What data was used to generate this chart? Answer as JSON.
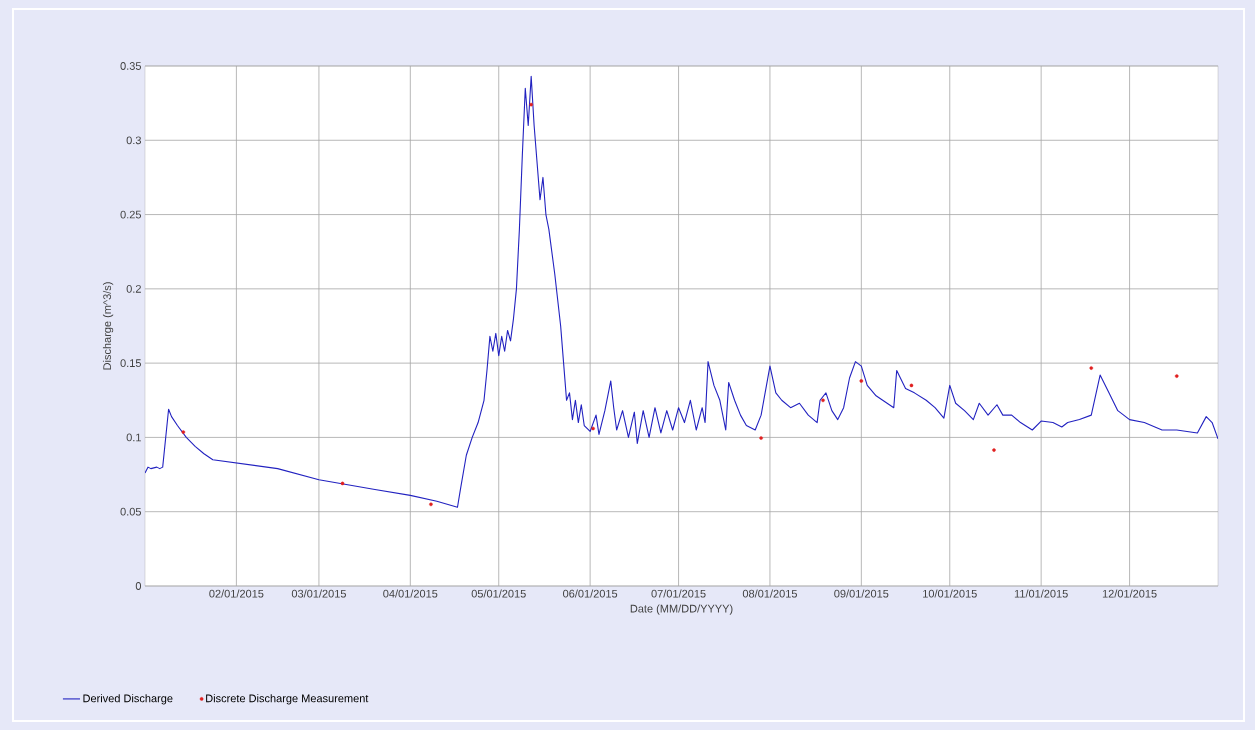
{
  "chart_data": {
    "type": "line",
    "xlabel": "Date (MM/DD/YYYY)",
    "ylabel": "Discharge (m^3/s)",
    "xlim": [
      "2015-01-01",
      "2015-12-31"
    ],
    "ylim": [
      0,
      0.35
    ],
    "xticks": [
      {
        "value": "2015-02-01",
        "label": "02/01/2015"
      },
      {
        "value": "2015-03-01",
        "label": "03/01/2015"
      },
      {
        "value": "2015-04-01",
        "label": "04/01/2015"
      },
      {
        "value": "2015-05-01",
        "label": "05/01/2015"
      },
      {
        "value": "2015-06-01",
        "label": "06/01/2015"
      },
      {
        "value": "2015-07-01",
        "label": "07/01/2015"
      },
      {
        "value": "2015-08-01",
        "label": "08/01/2015"
      },
      {
        "value": "2015-09-01",
        "label": "09/01/2015"
      },
      {
        "value": "2015-10-01",
        "label": "10/01/2015"
      },
      {
        "value": "2015-11-01",
        "label": "11/01/2015"
      },
      {
        "value": "2015-12-01",
        "label": "12/01/2015"
      }
    ],
    "yticks": [
      0,
      0.05,
      0.1,
      0.15,
      0.2,
      0.25,
      0.3,
      0.35
    ],
    "grid": true,
    "legend": "bottom left",
    "series": [
      {
        "name": "Derived Discharge",
        "type": "line",
        "color": "#2222c0",
        "x": [
          "2015-01-01",
          "2015-01-02",
          "2015-01-03",
          "2015-01-05",
          "2015-01-06",
          "2015-01-07",
          "2015-01-09",
          "2015-01-10",
          "2015-01-12",
          "2015-01-15",
          "2015-01-18",
          "2015-01-21",
          "2015-01-24",
          "2015-02-15",
          "2015-03-01",
          "2015-03-20",
          "2015-04-01",
          "2015-04-10",
          "2015-04-17",
          "2015-04-18",
          "2015-04-20",
          "2015-04-22",
          "2015-04-24",
          "2015-04-26",
          "2015-04-27",
          "2015-04-28",
          "2015-04-29",
          "2015-04-30",
          "2015-05-01",
          "2015-05-02",
          "2015-05-03",
          "2015-05-04",
          "2015-05-05",
          "2015-05-06",
          "2015-05-07",
          "2015-05-08",
          "2015-05-09",
          "2015-05-10",
          "2015-05-11",
          "2015-05-12",
          "2015-05-13",
          "2015-05-14",
          "2015-05-15",
          "2015-05-16",
          "2015-05-17",
          "2015-05-18",
          "2015-05-20",
          "2015-05-22",
          "2015-05-23",
          "2015-05-24",
          "2015-05-25",
          "2015-05-26",
          "2015-05-27",
          "2015-05-28",
          "2015-05-29",
          "2015-05-30",
          "2015-06-01",
          "2015-06-03",
          "2015-06-04",
          "2015-06-06",
          "2015-06-08",
          "2015-06-09",
          "2015-06-10",
          "2015-06-12",
          "2015-06-14",
          "2015-06-16",
          "2015-06-17",
          "2015-06-19",
          "2015-06-21",
          "2015-06-23",
          "2015-06-25",
          "2015-06-27",
          "2015-06-29",
          "2015-07-01",
          "2015-07-03",
          "2015-07-05",
          "2015-07-07",
          "2015-07-09",
          "2015-07-10",
          "2015-07-11",
          "2015-07-13",
          "2015-07-15",
          "2015-07-17",
          "2015-07-18",
          "2015-07-20",
          "2015-07-22",
          "2015-07-24",
          "2015-07-27",
          "2015-07-29",
          "2015-08-01",
          "2015-08-03",
          "2015-08-05",
          "2015-08-08",
          "2015-08-11",
          "2015-08-14",
          "2015-08-17",
          "2015-08-18",
          "2015-08-20",
          "2015-08-22",
          "2015-08-24",
          "2015-08-26",
          "2015-08-28",
          "2015-08-30",
          "2015-09-01",
          "2015-09-03",
          "2015-09-06",
          "2015-09-09",
          "2015-09-12",
          "2015-09-13",
          "2015-09-16",
          "2015-09-19",
          "2015-09-23",
          "2015-09-26",
          "2015-09-29",
          "2015-10-01",
          "2015-10-03",
          "2015-10-06",
          "2015-10-09",
          "2015-10-11",
          "2015-10-14",
          "2015-10-17",
          "2015-10-19",
          "2015-10-22",
          "2015-10-25",
          "2015-10-29",
          "2015-11-01",
          "2015-11-05",
          "2015-11-08",
          "2015-11-10",
          "2015-11-14",
          "2015-11-18",
          "2015-11-21",
          "2015-11-24",
          "2015-11-27",
          "2015-12-01",
          "2015-12-06",
          "2015-12-12",
          "2015-12-17",
          "2015-12-24",
          "2015-12-27",
          "2015-12-29",
          "2015-12-31"
        ],
        "values": [
          0.076,
          0.08,
          0.079,
          0.08,
          0.079,
          0.08,
          0.119,
          0.114,
          0.108,
          0.1,
          0.094,
          0.089,
          0.085,
          0.079,
          0.0715,
          0.065,
          0.061,
          0.057,
          0.053,
          0.065,
          0.088,
          0.1,
          0.11,
          0.125,
          0.145,
          0.168,
          0.158,
          0.17,
          0.155,
          0.168,
          0.158,
          0.172,
          0.165,
          0.18,
          0.2,
          0.24,
          0.29,
          0.335,
          0.31,
          0.343,
          0.31,
          0.285,
          0.26,
          0.275,
          0.25,
          0.24,
          0.21,
          0.175,
          0.15,
          0.125,
          0.13,
          0.112,
          0.125,
          0.11,
          0.122,
          0.108,
          0.104,
          0.115,
          0.102,
          0.118,
          0.138,
          0.12,
          0.105,
          0.118,
          0.1,
          0.117,
          0.096,
          0.118,
          0.1,
          0.12,
          0.103,
          0.118,
          0.105,
          0.12,
          0.11,
          0.125,
          0.105,
          0.12,
          0.11,
          0.151,
          0.135,
          0.125,
          0.105,
          0.137,
          0.125,
          0.115,
          0.108,
          0.105,
          0.115,
          0.148,
          0.13,
          0.125,
          0.12,
          0.123,
          0.115,
          0.11,
          0.125,
          0.13,
          0.118,
          0.112,
          0.12,
          0.14,
          0.151,
          0.148,
          0.135,
          0.128,
          0.124,
          0.12,
          0.145,
          0.133,
          0.13,
          0.125,
          0.12,
          0.113,
          0.135,
          0.123,
          0.118,
          0.112,
          0.123,
          0.115,
          0.122,
          0.115,
          0.115,
          0.11,
          0.105,
          0.111,
          0.11,
          0.107,
          0.11,
          0.112,
          0.115,
          0.142,
          0.13,
          0.118,
          0.112,
          0.11,
          0.105,
          0.105,
          0.103,
          0.114,
          0.11,
          0.099
        ]
      },
      {
        "name": "Discrete Discharge Measurement",
        "type": "scatter",
        "color": "#e02020",
        "x": [
          "2015-01-14",
          "2015-03-09",
          "2015-04-08",
          "2015-05-12",
          "2015-06-02",
          "2015-07-29",
          "2015-08-19",
          "2015-09-01",
          "2015-09-18",
          "2015-10-16",
          "2015-11-18",
          "2015-12-17"
        ],
        "values": [
          0.1036,
          0.069,
          0.055,
          0.324,
          0.106,
          0.0996,
          0.125,
          0.138,
          0.135,
          0.0915,
          0.1467,
          0.1413
        ]
      }
    ]
  }
}
